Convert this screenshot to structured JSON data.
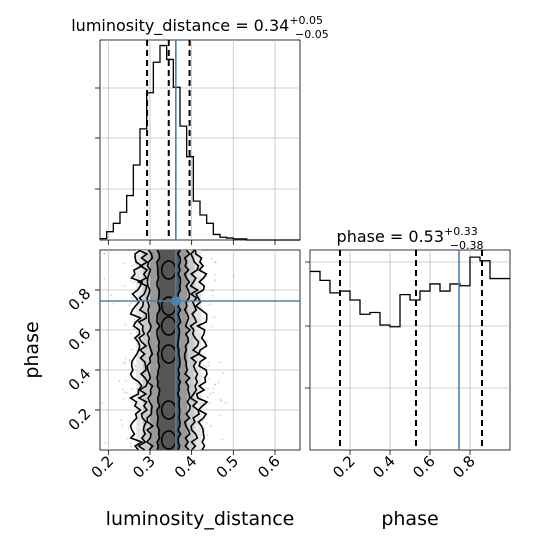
{
  "chart_data": [
    {
      "type": "histogram",
      "panel": "luminosity_distance-marginal",
      "title": {
        "base": "luminosity_distance = 0.34",
        "sup": "+0.05",
        "sub": "−0.05"
      },
      "xlim": [
        0.18,
        0.66
      ],
      "ylim": [
        0,
        72
      ],
      "bin_edges": [
        0.18,
        0.196,
        0.212,
        0.228,
        0.244,
        0.26,
        0.276,
        0.292,
        0.308,
        0.324,
        0.34,
        0.356,
        0.372,
        0.388,
        0.404,
        0.42,
        0.436,
        0.452,
        0.468,
        0.484,
        0.5,
        0.516,
        0.532,
        0.548,
        0.564,
        0.58,
        0.596,
        0.612,
        0.628,
        0.644,
        0.66
      ],
      "counts": [
        0.5,
        3,
        6,
        10,
        16,
        27,
        40,
        53,
        64,
        70,
        65,
        55,
        41,
        30,
        14,
        9,
        6,
        2,
        1,
        0.7,
        0.4,
        0.4,
        0,
        0,
        0,
        0,
        0,
        0,
        0,
        0
      ],
      "quantile_lines": [
        0.293,
        0.345,
        0.395
      ],
      "truth": 0.362,
      "grid": true,
      "tick_values": [
        0.2,
        0.3,
        0.4,
        0.5,
        0.6
      ]
    },
    {
      "type": "histogram",
      "panel": "phase-marginal",
      "title": {
        "base": "phase = 0.53",
        "sup": "+0.33",
        "sub": "−0.38"
      },
      "xlim": [
        0.0,
        1.0
      ],
      "ylim": [
        0,
        112
      ],
      "bin_edges": [
        0.0,
        0.05,
        0.1,
        0.15,
        0.2,
        0.25,
        0.3,
        0.35,
        0.4,
        0.45,
        0.5,
        0.55,
        0.6,
        0.65,
        0.7,
        0.75,
        0.8,
        0.85,
        0.9,
        0.95,
        1.0
      ],
      "counts": [
        100,
        95,
        88,
        89,
        84,
        76,
        77,
        70,
        69,
        87,
        84,
        89,
        93,
        89,
        93,
        92,
        108,
        106,
        96,
        96
      ],
      "quantile_lines": [
        0.15,
        0.53,
        0.86
      ],
      "truth": 0.745,
      "grid": true,
      "tick_values": [
        0.2,
        0.4,
        0.6,
        0.8
      ],
      "xlabel": "phase"
    },
    {
      "type": "heatmap",
      "panel": "2d-corner",
      "xlabel": "luminosity_distance",
      "ylabel": "phase",
      "xlim": [
        0.18,
        0.66
      ],
      "ylim": [
        0.0,
        1.0
      ],
      "x_ticks": [
        0.2,
        0.3,
        0.4,
        0.5,
        0.6
      ],
      "y_ticks": [
        0.2,
        0.4,
        0.6,
        0.8
      ],
      "truth": {
        "x": 0.362,
        "y": 0.745
      },
      "x_center": 0.345,
      "contour_half_widths": [
        0.025,
        0.045,
        0.062,
        0.078
      ],
      "grid": true
    }
  ],
  "labels": {
    "tick_ld": [
      "0.2",
      "0.3",
      "0.4",
      "0.5",
      "0.6"
    ],
    "tick_phase_y": [
      "0.2",
      "0.4",
      "0.6",
      "0.8"
    ],
    "tick_phase_x": [
      "0.2",
      "0.4",
      "0.6",
      "0.8"
    ],
    "xlabel_ld": "luminosity_distance",
    "xlabel_phase": "phase",
    "ylabel_phase": "phase",
    "title_ld_base": "luminosity_distance = 0.34",
    "title_ld_sup": "+0.05",
    "title_ld_sub": "−0.05",
    "title_ph_base": "phase = 0.53",
    "title_ph_sup": "+0.33",
    "title_ph_sub": "−0.38"
  },
  "colors": {
    "truth": "#4682b4",
    "hist": "#000000",
    "grid": "#c0c0c0",
    "scatter": "#9a9a9a"
  }
}
